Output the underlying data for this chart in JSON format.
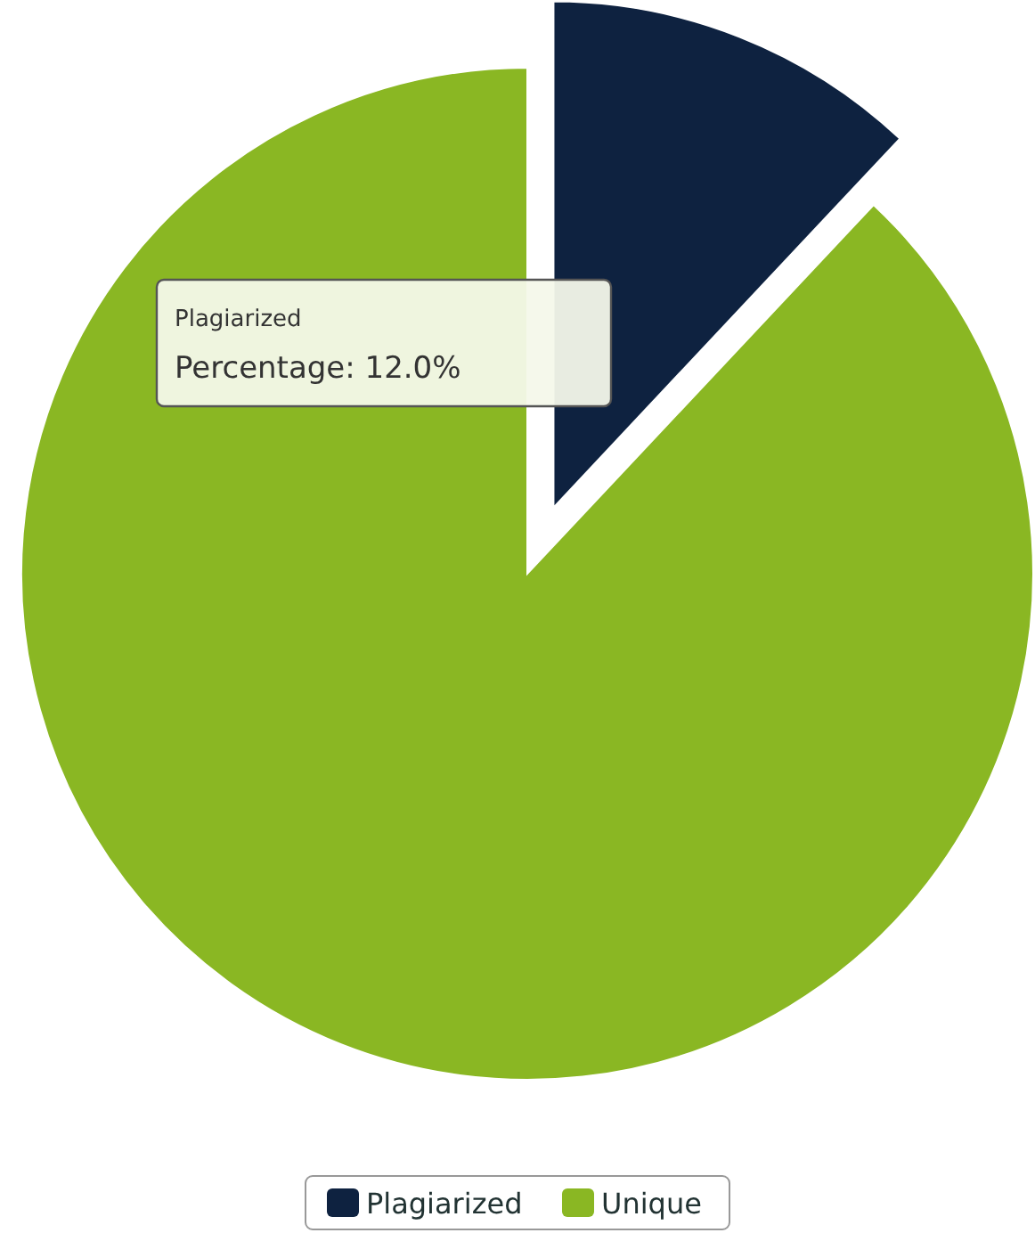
{
  "chart_data": {
    "type": "pie",
    "categories": [
      "Plagiarized",
      "Unique"
    ],
    "values": [
      12,
      88
    ],
    "colors": [
      "#0e2240",
      "#8ab723"
    ],
    "annotations": [
      "Plagiarized",
      "Percentage: 12.0%"
    ],
    "legend": "bottom"
  }
}
